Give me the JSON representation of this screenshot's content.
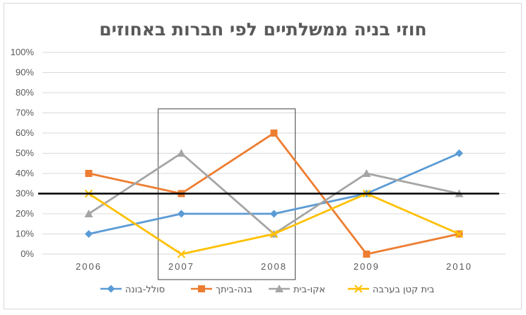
{
  "chart_data": {
    "type": "line",
    "title": "חוזי בניה ממשלתיים לפי חברות באחוזים",
    "categories": [
      "2006",
      "2007",
      "2008",
      "2009",
      "2010"
    ],
    "y_ticks": [
      "0%",
      "10%",
      "20%",
      "30%",
      "40%",
      "50%",
      "60%",
      "70%",
      "80%",
      "90%",
      "100%"
    ],
    "ylim": [
      0,
      100
    ],
    "grid": true,
    "legend_position": "bottom",
    "reference_line": {
      "value": 30,
      "color": "#000000"
    },
    "highlight_box": {
      "from_category": "2007",
      "to_category": "2008",
      "y_top": 72
    },
    "series": [
      {
        "name": "סולל-בונה",
        "values": [
          10,
          20,
          20,
          30,
          50
        ],
        "color": "#5b9bd5",
        "marker": "diamond"
      },
      {
        "name": "בנה-ביתך",
        "values": [
          40,
          30,
          60,
          0,
          10
        ],
        "color": "#ed7d31",
        "marker": "square"
      },
      {
        "name": "אקו-בית",
        "values": [
          20,
          50,
          10,
          40,
          30
        ],
        "color": "#a5a5a5",
        "marker": "triangle"
      },
      {
        "name": "בית קטן בערבה",
        "values": [
          30,
          0,
          10,
          30,
          10
        ],
        "color": "#ffc000",
        "marker": "x"
      }
    ]
  }
}
